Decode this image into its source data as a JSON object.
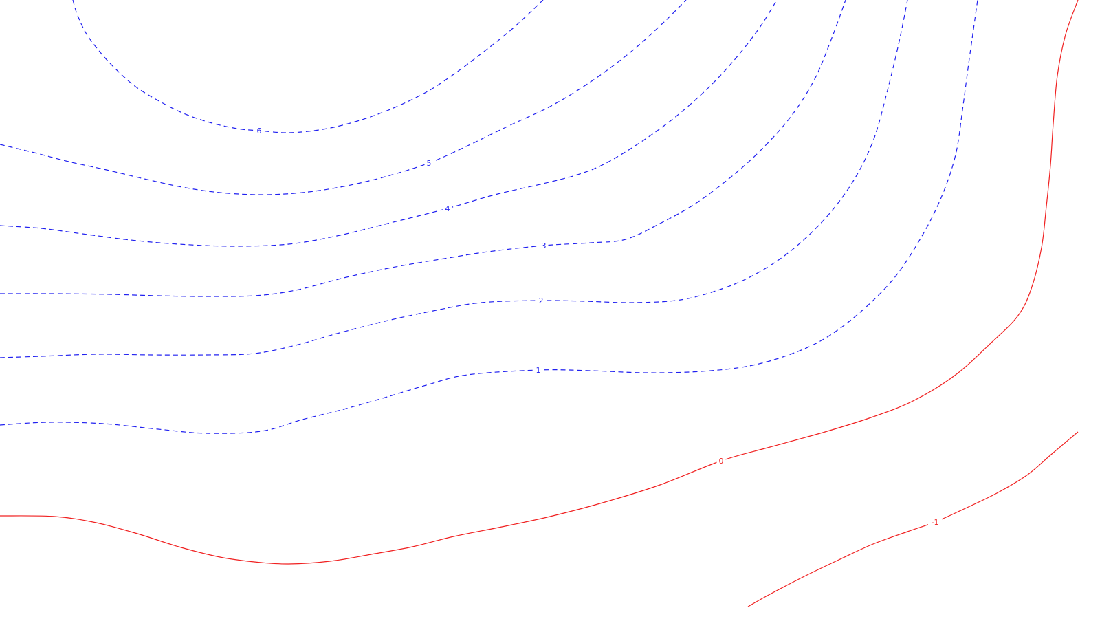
{
  "chart_data": {
    "type": "contour",
    "title": "",
    "xlabel": "",
    "ylabel": "",
    "grid": false,
    "legend": "none",
    "styles": {
      "positive": {
        "color": "#2020f0",
        "dash": "dashed"
      },
      "zero_or_negative": {
        "color": "#f02020",
        "dash": "solid"
      }
    },
    "contours": [
      {
        "level": 6,
        "label": "6",
        "color": "#2020f0",
        "dashed": true,
        "label_at": [
          377,
          190
        ],
        "path": [
          [
            106,
            0
          ],
          [
            112,
            20
          ],
          [
            125,
            48
          ],
          [
            145,
            75
          ],
          [
            168,
            100
          ],
          [
            196,
            125
          ],
          [
            228,
            145
          ],
          [
            265,
            164
          ],
          [
            305,
            178
          ],
          [
            345,
            187
          ],
          [
            377,
            190
          ],
          [
            420,
            193
          ],
          [
            470,
            188
          ],
          [
            520,
            176
          ],
          [
            570,
            158
          ],
          [
            620,
            134
          ],
          [
            660,
            108
          ],
          [
            700,
            78
          ],
          [
            745,
            42
          ],
          [
            790,
            0
          ]
        ]
      },
      {
        "level": 5,
        "label": "5",
        "color": "#2020f0",
        "dashed": true,
        "label_at": [
          624,
          237
        ],
        "path": [
          [
            0,
            210
          ],
          [
            50,
            222
          ],
          [
            100,
            235
          ],
          [
            155,
            247
          ],
          [
            210,
            260
          ],
          [
            265,
            272
          ],
          [
            320,
            280
          ],
          [
            380,
            283
          ],
          [
            440,
            280
          ],
          [
            500,
            271
          ],
          [
            560,
            257
          ],
          [
            624,
            237
          ],
          [
            680,
            212
          ],
          [
            740,
            183
          ],
          [
            800,
            155
          ],
          [
            850,
            125
          ],
          [
            890,
            97
          ],
          [
            930,
            65
          ],
          [
            968,
            30
          ],
          [
            998,
            0
          ]
        ]
      },
      {
        "level": 4,
        "label": "4",
        "color": "#2020f0",
        "dashed": true,
        "label_at": [
          651,
          303
        ],
        "path": [
          [
            0,
            328
          ],
          [
            60,
            332
          ],
          [
            120,
            340
          ],
          [
            190,
            349
          ],
          [
            260,
            355
          ],
          [
            340,
            358
          ],
          [
            420,
            355
          ],
          [
            490,
            343
          ],
          [
            560,
            326
          ],
          [
            651,
            303
          ],
          [
            720,
            283
          ],
          [
            790,
            267
          ],
          [
            840,
            254
          ],
          [
            880,
            238
          ],
          [
            930,
            208
          ],
          [
            980,
            172
          ],
          [
            1030,
            128
          ],
          [
            1070,
            85
          ],
          [
            1105,
            40
          ],
          [
            1130,
            0
          ]
        ]
      },
      {
        "level": 3,
        "label": "3",
        "color": "#2020f0",
        "dashed": true,
        "label_at": [
          791,
          357
        ],
        "path": [
          [
            0,
            427
          ],
          [
            80,
            427
          ],
          [
            160,
            428
          ],
          [
            230,
            430
          ],
          [
            290,
            431
          ],
          [
            370,
            430
          ],
          [
            430,
            422
          ],
          [
            500,
            404
          ],
          [
            570,
            389
          ],
          [
            640,
            377
          ],
          [
            710,
            366
          ],
          [
            791,
            357
          ],
          [
            860,
            353
          ],
          [
            910,
            348
          ],
          [
            960,
            325
          ],
          [
            1010,
            297
          ],
          [
            1060,
            260
          ],
          [
            1105,
            220
          ],
          [
            1150,
            170
          ],
          [
            1185,
            115
          ],
          [
            1210,
            55
          ],
          [
            1230,
            0
          ]
        ]
      },
      {
        "level": 2,
        "label": "2",
        "color": "#2020f0",
        "dashed": true,
        "label_at": [
          787,
          437
        ],
        "path": [
          [
            0,
            520
          ],
          [
            60,
            518
          ],
          [
            140,
            515
          ],
          [
            220,
            516
          ],
          [
            300,
            516
          ],
          [
            370,
            514
          ],
          [
            430,
            502
          ],
          [
            490,
            485
          ],
          [
            560,
            467
          ],
          [
            630,
            452
          ],
          [
            700,
            440
          ],
          [
            787,
            437
          ],
          [
            850,
            438
          ],
          [
            920,
            440
          ],
          [
            990,
            436
          ],
          [
            1050,
            420
          ],
          [
            1100,
            398
          ],
          [
            1150,
            365
          ],
          [
            1200,
            318
          ],
          [
            1240,
            265
          ],
          [
            1270,
            205
          ],
          [
            1290,
            135
          ],
          [
            1308,
            60
          ],
          [
            1320,
            0
          ]
        ]
      },
      {
        "level": 1,
        "label": "1",
        "color": "#2020f0",
        "dashed": true,
        "label_at": [
          783,
          538
        ],
        "path": [
          [
            0,
            618
          ],
          [
            70,
            614
          ],
          [
            150,
            616
          ],
          [
            230,
            624
          ],
          [
            300,
            630
          ],
          [
            380,
            627
          ],
          [
            440,
            610
          ],
          [
            500,
            595
          ],
          [
            560,
            578
          ],
          [
            620,
            560
          ],
          [
            680,
            545
          ],
          [
            783,
            538
          ],
          [
            860,
            539
          ],
          [
            940,
            542
          ],
          [
            1020,
            540
          ],
          [
            1090,
            532
          ],
          [
            1150,
            515
          ],
          [
            1200,
            492
          ],
          [
            1250,
            455
          ],
          [
            1300,
            405
          ],
          [
            1340,
            345
          ],
          [
            1370,
            285
          ],
          [
            1390,
            225
          ],
          [
            1400,
            160
          ],
          [
            1410,
            85
          ],
          [
            1422,
            0
          ]
        ]
      },
      {
        "level": 0,
        "label": "0",
        "color": "#f02020",
        "dashed": false,
        "label_at": [
          1049,
          670
        ],
        "path": [
          [
            0,
            750
          ],
          [
            80,
            751
          ],
          [
            140,
            760
          ],
          [
            200,
            776
          ],
          [
            260,
            795
          ],
          [
            320,
            810
          ],
          [
            370,
            817
          ],
          [
            420,
            820
          ],
          [
            480,
            816
          ],
          [
            540,
            806
          ],
          [
            600,
            795
          ],
          [
            660,
            780
          ],
          [
            730,
            766
          ],
          [
            800,
            751
          ],
          [
            880,
            730
          ],
          [
            960,
            705
          ],
          [
            1049,
            670
          ],
          [
            1120,
            650
          ],
          [
            1200,
            628
          ],
          [
            1270,
            606
          ],
          [
            1330,
            582
          ],
          [
            1390,
            545
          ],
          [
            1440,
            500
          ],
          [
            1480,
            460
          ],
          [
            1500,
            420
          ],
          [
            1515,
            360
          ],
          [
            1522,
            300
          ],
          [
            1528,
            240
          ],
          [
            1532,
            180
          ],
          [
            1538,
            110
          ],
          [
            1550,
            50
          ],
          [
            1568,
            0
          ]
        ]
      },
      {
        "level": -1,
        "label": "-1",
        "color": "#f02020",
        "dashed": false,
        "label_at": [
          1360,
          759
        ],
        "path": [
          [
            1088,
            882
          ],
          [
            1120,
            864
          ],
          [
            1170,
            838
          ],
          [
            1220,
            814
          ],
          [
            1270,
            791
          ],
          [
            1320,
            773
          ],
          [
            1360,
            759
          ],
          [
            1400,
            741
          ],
          [
            1450,
            717
          ],
          [
            1495,
            690
          ],
          [
            1530,
            660
          ],
          [
            1568,
            628
          ]
        ]
      }
    ]
  }
}
